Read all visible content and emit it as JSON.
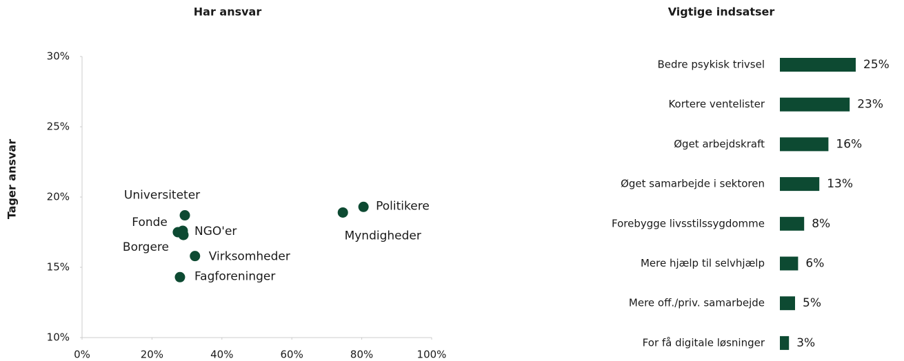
{
  "chart_data": [
    {
      "type": "scatter",
      "title": "Har ansvar",
      "y_label": "Tager ansvar",
      "color": "#0d4a32",
      "labels": [
        "Universiteter",
        "Fonde",
        "NGO'er",
        "Borgere",
        "Virksomheder",
        "Fagforeninger",
        "Myndigheder",
        "Politikere"
      ],
      "x": [
        29.4,
        27.4,
        28.8,
        29.0,
        32.3,
        28.0,
        74.6,
        80.5
      ],
      "values": [
        18.7,
        17.5,
        17.6,
        17.3,
        15.8,
        14.3,
        18.9,
        19.3
      ],
      "xlim": [
        0,
        100
      ],
      "xticks": [
        {
          "value": 0,
          "label": "0%"
        },
        {
          "value": 20,
          "label": "20%"
        },
        {
          "value": 40,
          "label": "40%"
        },
        {
          "value": 60,
          "label": "60%"
        },
        {
          "value": 80,
          "label": "80%"
        },
        {
          "value": 100,
          "label": "100%"
        }
      ],
      "ylim": [
        10,
        30
      ],
      "yticks": [
        {
          "value": 10,
          "label": "10%"
        },
        {
          "value": 15,
          "label": "15%"
        },
        {
          "value": 20,
          "label": "20%"
        },
        {
          "value": 25,
          "label": "25%"
        },
        {
          "value": 30,
          "label": "30%"
        }
      ],
      "grid": false
    },
    {
      "type": "bar",
      "orientation": "horizontal",
      "title": "Vigtige indsatser",
      "color": "#0d4a32",
      "categories": [
        "Bedre psykisk trivsel",
        "Kortere ventelister",
        "Øget arbejdskraft",
        "Øget samarbejde i sektoren",
        "Forebygge livsstilssygdomme",
        "Mere hjælp til selvhjælp",
        "Mere off./priv. samarbejde",
        "For få digitale løsninger"
      ],
      "values": [
        25,
        23,
        16,
        13,
        8,
        6,
        5,
        3
      ],
      "value_labels": [
        "25%",
        "23%",
        "16%",
        "13%",
        "8%",
        "6%",
        "5%",
        "3%"
      ],
      "xlim": [
        0,
        25
      ]
    }
  ]
}
